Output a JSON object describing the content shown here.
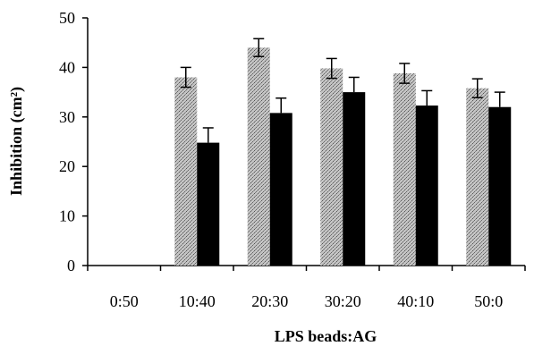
{
  "chart_data": {
    "type": "bar",
    "xlabel": "LPS beads:AG",
    "ylabel": "Inhibition (cm²)",
    "ylim": [
      0,
      50
    ],
    "yticks": [
      0,
      10,
      20,
      30,
      40,
      50
    ],
    "categories": [
      "0:50",
      "10:40",
      "20:30",
      "30:20",
      "40:10",
      "50:0"
    ],
    "grid": false,
    "legend": "none",
    "series": [
      {
        "color": "#9a9a9a",
        "pattern": "stippled",
        "values": [
          0,
          38,
          44,
          39.8,
          38.8,
          35.8
        ],
        "errors": [
          0,
          2.0,
          1.8,
          2.0,
          2.0,
          1.9
        ]
      },
      {
        "color": "#000000",
        "pattern": "solid",
        "values": [
          0,
          24.8,
          30.8,
          35.0,
          32.3,
          32.0
        ],
        "errors": [
          0,
          3.0,
          3.0,
          3.0,
          3.0,
          3.0
        ]
      }
    ]
  }
}
